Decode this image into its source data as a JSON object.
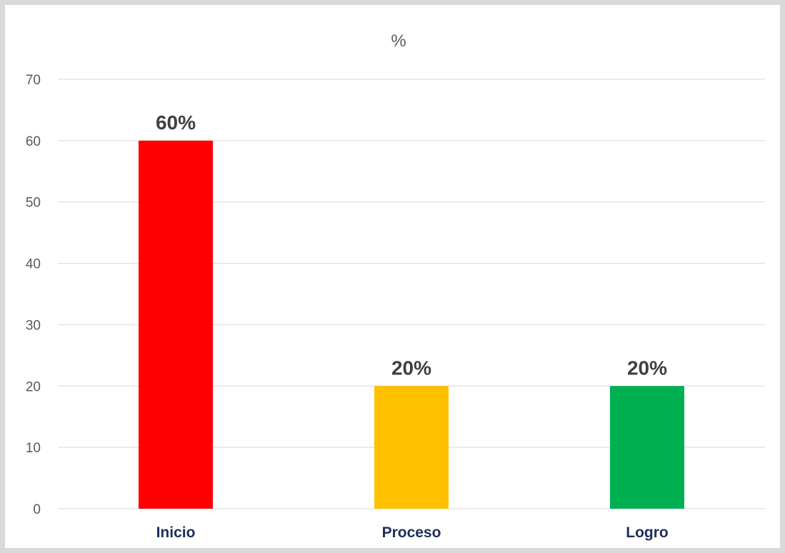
{
  "chart_data": {
    "type": "bar",
    "title": "%",
    "xlabel": "",
    "ylabel": "",
    "categories": [
      "Inicio",
      "Proceso",
      "Logro"
    ],
    "values": [
      60,
      20,
      20
    ],
    "data_labels": [
      "60%",
      "20%",
      "20%"
    ],
    "colors": [
      "#ff0000",
      "#ffc000",
      "#00b050"
    ],
    "ylim": [
      0,
      70
    ],
    "yticks": [
      0,
      10,
      20,
      30,
      40,
      50,
      60,
      70
    ],
    "grid": true,
    "legend": "none"
  }
}
